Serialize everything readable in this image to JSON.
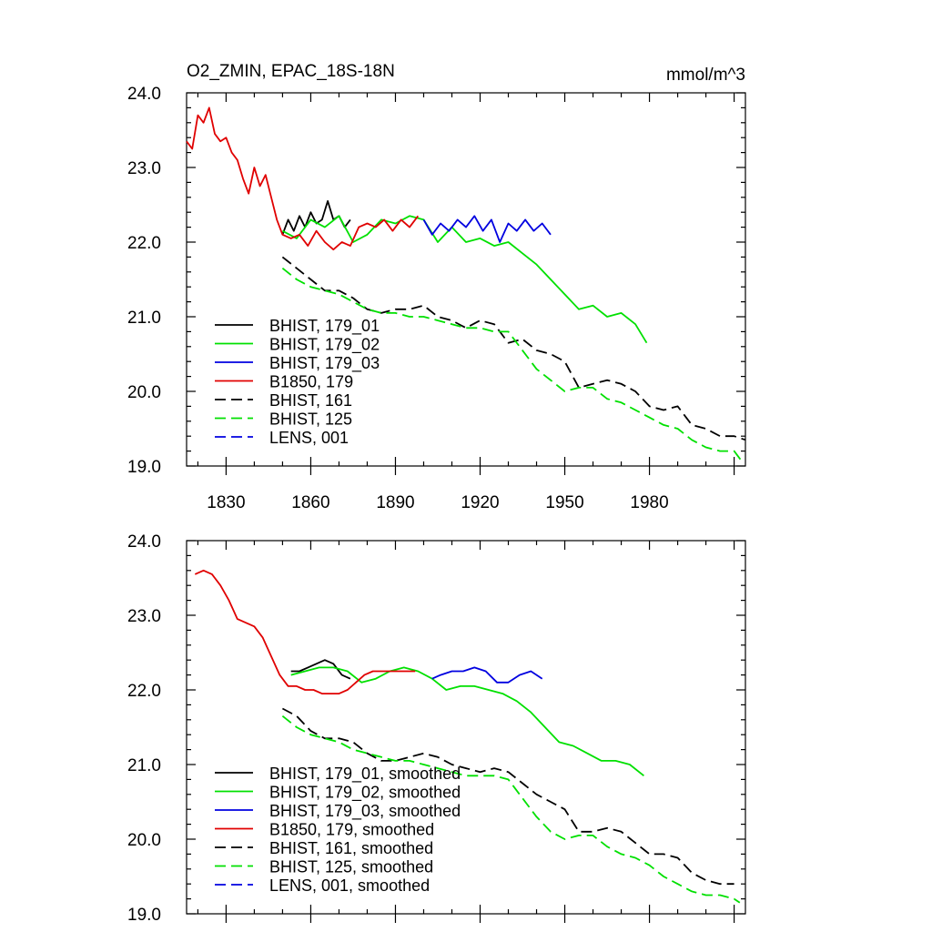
{
  "chart_data": [
    {
      "type": "line",
      "title": "O2_ZMIN, EPAC_18S-18N",
      "units": "mmol/m^3",
      "xlim": [
        1816,
        2014
      ],
      "ylim": [
        19.0,
        24.0
      ],
      "yticks": [
        "24.0",
        "23.0",
        "22.0",
        "21.0",
        "20.0",
        "19.0"
      ],
      "xticks": [
        "1830",
        "1860",
        "1890",
        "1920",
        "1950",
        "1980"
      ],
      "legend_position": "bottom-left",
      "series": [
        {
          "name": "BHIST, 179_01",
          "color": "#000000",
          "dash": "solid",
          "x": [
            1850,
            1852,
            1854,
            1856,
            1858,
            1860,
            1862,
            1864,
            1866,
            1868,
            1870,
            1872,
            1874
          ],
          "y": [
            22.1,
            22.3,
            22.15,
            22.35,
            22.2,
            22.4,
            22.25,
            22.3,
            22.55,
            22.3,
            22.35,
            22.2,
            22.3
          ]
        },
        {
          "name": "BHIST, 179_02",
          "color": "#00e000",
          "dash": "solid",
          "x": [
            1850,
            1855,
            1860,
            1865,
            1870,
            1875,
            1880,
            1885,
            1890,
            1895,
            1900,
            1905,
            1910,
            1915,
            1920,
            1925,
            1930,
            1935,
            1940,
            1945,
            1950,
            1955,
            1960,
            1965,
            1970,
            1975,
            1979
          ],
          "y": [
            22.15,
            22.05,
            22.3,
            22.2,
            22.35,
            22.0,
            22.1,
            22.3,
            22.25,
            22.35,
            22.3,
            22.0,
            22.2,
            22.0,
            22.05,
            21.95,
            22.0,
            21.85,
            21.7,
            21.5,
            21.3,
            21.1,
            21.15,
            21.0,
            21.05,
            20.9,
            20.65
          ]
        },
        {
          "name": "BHIST, 179_03",
          "color": "#0000e0",
          "dash": "solid",
          "x": [
            1900,
            1903,
            1906,
            1909,
            1912,
            1915,
            1918,
            1921,
            1924,
            1927,
            1930,
            1933,
            1936,
            1939,
            1942,
            1945
          ],
          "y": [
            22.3,
            22.1,
            22.25,
            22.15,
            22.3,
            22.2,
            22.35,
            22.15,
            22.3,
            22.0,
            22.25,
            22.15,
            22.3,
            22.15,
            22.25,
            22.1
          ]
        },
        {
          "name": "B1850, 179",
          "color": "#e00000",
          "dash": "solid",
          "x": [
            1816,
            1818,
            1820,
            1822,
            1824,
            1826,
            1828,
            1830,
            1832,
            1834,
            1836,
            1838,
            1840,
            1842,
            1844,
            1846,
            1848,
            1850,
            1853,
            1856,
            1859,
            1862,
            1865,
            1868,
            1871,
            1874,
            1877,
            1880,
            1883,
            1886,
            1889,
            1892,
            1895,
            1898
          ],
          "y": [
            23.35,
            23.25,
            23.7,
            23.6,
            23.8,
            23.45,
            23.35,
            23.4,
            23.2,
            23.1,
            22.85,
            22.65,
            23.0,
            22.75,
            22.9,
            22.6,
            22.3,
            22.1,
            22.05,
            22.1,
            21.95,
            22.15,
            22.0,
            21.9,
            22.0,
            21.95,
            22.2,
            22.25,
            22.2,
            22.3,
            22.15,
            22.3,
            22.2,
            22.35
          ]
        },
        {
          "name": "BHIST, 161",
          "color": "#000000",
          "dash": "dashed",
          "x": [
            1850,
            1855,
            1860,
            1865,
            1870,
            1875,
            1880,
            1885,
            1890,
            1895,
            1900,
            1905,
            1910,
            1915,
            1920,
            1925,
            1930,
            1935,
            1940,
            1945,
            1950,
            1955,
            1960,
            1965,
            1970,
            1975,
            1980,
            1985,
            1990,
            1995,
            2000,
            2005,
            2010,
            2014
          ],
          "y": [
            21.8,
            21.65,
            21.5,
            21.35,
            21.35,
            21.25,
            21.1,
            21.05,
            21.1,
            21.1,
            21.15,
            21.0,
            20.95,
            20.85,
            20.95,
            20.9,
            20.65,
            20.7,
            20.55,
            20.5,
            20.4,
            20.05,
            20.1,
            20.15,
            20.1,
            20.0,
            19.8,
            19.75,
            19.8,
            19.55,
            19.5,
            19.4,
            19.4,
            19.35
          ]
        },
        {
          "name": "BHIST, 125",
          "color": "#00e000",
          "dash": "dashed",
          "x": [
            1850,
            1855,
            1860,
            1865,
            1870,
            1875,
            1880,
            1885,
            1890,
            1895,
            1900,
            1905,
            1910,
            1915,
            1920,
            1925,
            1930,
            1935,
            1940,
            1945,
            1950,
            1955,
            1960,
            1965,
            1970,
            1975,
            1980,
            1985,
            1990,
            1995,
            2000,
            2005,
            2010,
            2013
          ],
          "y": [
            21.65,
            21.5,
            21.4,
            21.35,
            21.3,
            21.2,
            21.1,
            21.05,
            21.05,
            21.0,
            21.0,
            20.95,
            20.9,
            20.85,
            20.85,
            20.8,
            20.8,
            20.55,
            20.3,
            20.15,
            20.0,
            20.05,
            20.05,
            19.9,
            19.85,
            19.75,
            19.65,
            19.55,
            19.5,
            19.35,
            19.25,
            19.2,
            19.2,
            19.05
          ]
        },
        {
          "name": "LENS, 001",
          "color": "#0000e0",
          "dash": "dashed",
          "x": [],
          "y": []
        }
      ]
    },
    {
      "type": "line",
      "title": "",
      "units": "",
      "xlim": [
        1816,
        2014
      ],
      "ylim": [
        19.0,
        24.0
      ],
      "yticks": [
        "24.0",
        "23.0",
        "22.0",
        "21.0",
        "20.0",
        "19.0"
      ],
      "xticks": [],
      "legend_position": "bottom-left",
      "series": [
        {
          "name": "BHIST, 179_01, smoothed",
          "color": "#000000",
          "dash": "solid",
          "x": [
            1853,
            1856,
            1859,
            1862,
            1865,
            1868,
            1871,
            1874
          ],
          "y": [
            22.25,
            22.25,
            22.3,
            22.35,
            22.4,
            22.35,
            22.2,
            22.15
          ]
        },
        {
          "name": "BHIST, 179_02, smoothed",
          "color": "#00e000",
          "dash": "solid",
          "x": [
            1853,
            1858,
            1863,
            1868,
            1873,
            1878,
            1883,
            1888,
            1893,
            1898,
            1903,
            1908,
            1913,
            1918,
            1923,
            1928,
            1933,
            1938,
            1943,
            1948,
            1953,
            1958,
            1963,
            1968,
            1973,
            1978
          ],
          "y": [
            22.2,
            22.25,
            22.3,
            22.3,
            22.25,
            22.1,
            22.15,
            22.25,
            22.3,
            22.25,
            22.15,
            22.0,
            22.05,
            22.05,
            22.0,
            21.95,
            21.85,
            21.7,
            21.5,
            21.3,
            21.25,
            21.15,
            21.05,
            21.05,
            21.0,
            20.85
          ]
        },
        {
          "name": "BHIST, 179_03, smoothed",
          "color": "#0000e0",
          "dash": "solid",
          "x": [
            1903,
            1906,
            1910,
            1914,
            1918,
            1922,
            1926,
            1930,
            1934,
            1938,
            1942
          ],
          "y": [
            22.15,
            22.2,
            22.25,
            22.25,
            22.3,
            22.25,
            22.1,
            22.1,
            22.2,
            22.25,
            22.15
          ]
        },
        {
          "name": "B1850, 179, smoothed",
          "color": "#e00000",
          "dash": "solid",
          "x": [
            1819,
            1822,
            1825,
            1828,
            1831,
            1834,
            1837,
            1840,
            1843,
            1846,
            1849,
            1852,
            1855,
            1858,
            1861,
            1864,
            1867,
            1870,
            1873,
            1876,
            1879,
            1882,
            1885,
            1888,
            1891,
            1894,
            1897
          ],
          "y": [
            23.55,
            23.6,
            23.55,
            23.4,
            23.2,
            22.95,
            22.9,
            22.85,
            22.7,
            22.45,
            22.2,
            22.05,
            22.05,
            22.0,
            22.0,
            21.95,
            21.95,
            21.95,
            22.0,
            22.1,
            22.2,
            22.25,
            22.25,
            22.25,
            22.25,
            22.25,
            22.25
          ]
        },
        {
          "name": "BHIST, 161, smoothed",
          "color": "#000000",
          "dash": "dashed",
          "x": [
            1850,
            1855,
            1860,
            1865,
            1870,
            1875,
            1880,
            1885,
            1890,
            1895,
            1900,
            1905,
            1910,
            1915,
            1920,
            1925,
            1930,
            1935,
            1940,
            1945,
            1950,
            1955,
            1960,
            1965,
            1970,
            1975,
            1980,
            1985,
            1990,
            1995,
            2000,
            2005,
            2010
          ],
          "y": [
            21.75,
            21.65,
            21.45,
            21.35,
            21.35,
            21.3,
            21.15,
            21.05,
            21.05,
            21.1,
            21.15,
            21.1,
            21.0,
            20.95,
            20.9,
            20.95,
            20.9,
            20.75,
            20.6,
            20.5,
            20.4,
            20.1,
            20.1,
            20.15,
            20.1,
            19.95,
            19.8,
            19.8,
            19.75,
            19.55,
            19.45,
            19.4,
            19.4
          ]
        },
        {
          "name": "BHIST, 125, smoothed",
          "color": "#00e000",
          "dash": "dashed",
          "x": [
            1850,
            1855,
            1860,
            1865,
            1870,
            1875,
            1880,
            1885,
            1890,
            1895,
            1900,
            1905,
            1910,
            1915,
            1920,
            1925,
            1930,
            1935,
            1940,
            1945,
            1950,
            1955,
            1960,
            1965,
            1970,
            1975,
            1980,
            1985,
            1990,
            1995,
            2000,
            2005,
            2010,
            2012
          ],
          "y": [
            21.65,
            21.5,
            21.4,
            21.35,
            21.3,
            21.2,
            21.15,
            21.1,
            21.05,
            21.05,
            21.0,
            20.95,
            20.9,
            20.85,
            20.85,
            20.85,
            20.8,
            20.55,
            20.3,
            20.1,
            20.0,
            20.05,
            20.05,
            19.9,
            19.8,
            19.75,
            19.65,
            19.5,
            19.4,
            19.3,
            19.25,
            19.25,
            19.2,
            19.15
          ]
        },
        {
          "name": "LENS, 001, smoothed",
          "color": "#0000e0",
          "dash": "dashed",
          "x": [],
          "y": []
        }
      ]
    }
  ]
}
